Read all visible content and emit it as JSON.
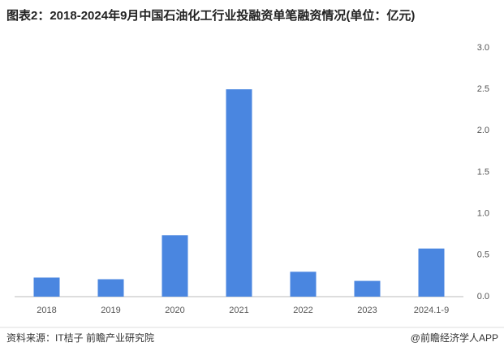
{
  "chart_data": {
    "type": "bar",
    "title": "图表2：2018-2024年9月中国石油化工行业投融资单笔融资情况(单位：亿元)",
    "categories": [
      "2018",
      "2019",
      "2020",
      "2021",
      "2022",
      "2023",
      "2024.1-9"
    ],
    "values": [
      0.23,
      0.21,
      0.74,
      2.5,
      0.3,
      0.19,
      0.58
    ],
    "color": "#4a86e0",
    "ylim": [
      0,
      3
    ],
    "yticks": [
      {
        "value": 0,
        "label": "0.0"
      },
      0.5,
      {
        "value": 1,
        "label": "1.0"
      },
      1.5,
      {
        "value": 2,
        "label": "2.0"
      },
      2.5,
      {
        "value": 3,
        "label": "3.0"
      }
    ],
    "grid": false,
    "source": "资料来源：IT桔子 前瞻产业研究院",
    "credit": "@前瞻经济学人APP"
  }
}
